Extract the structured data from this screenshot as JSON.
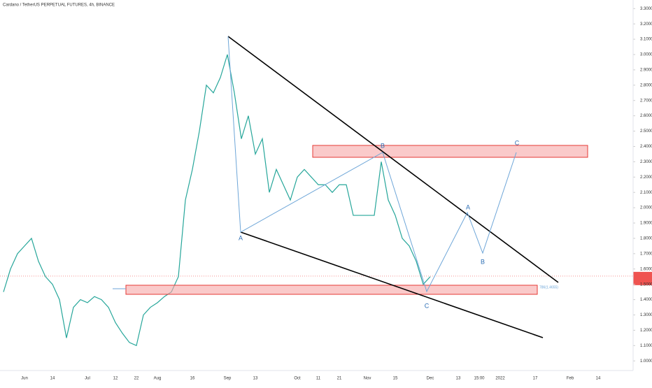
{
  "chart_data": {
    "type": "line",
    "title": "Cardano / TetherUS PERPETUAL FUTURES, 4h, BINANCE",
    "categories": [
      null,
      null,
      null,
      "Jun",
      null,
      null,
      null,
      "14",
      null,
      null,
      null,
      null,
      "Jul",
      null,
      null,
      null,
      "12",
      null,
      null,
      "22",
      null,
      null,
      "Aug",
      null,
      null,
      null,
      null,
      "16",
      null,
      null,
      null,
      null,
      "Sep",
      null,
      null,
      null,
      "13",
      null,
      null,
      null,
      null,
      null,
      "Oct",
      null,
      null,
      "11",
      null,
      null,
      "21",
      null,
      null,
      null,
      "Nov",
      null,
      null,
      null,
      "15",
      null,
      null,
      null,
      null,
      "Dec",
      null,
      null,
      null,
      "13",
      null,
      null,
      "15:00",
      null,
      null,
      "2022",
      null,
      null,
      null,
      null,
      "17",
      null,
      null,
      null,
      null,
      "Feb",
      null,
      null,
      null,
      "14",
      null,
      null,
      null,
      null,
      null
    ],
    "series": [
      {
        "color": "#26a69a",
        "values": [
          1.45,
          1.6,
          1.7,
          1.75,
          1.8,
          1.65,
          1.55,
          1.5,
          1.4,
          1.15,
          1.35,
          1.4,
          1.38,
          1.42,
          1.4,
          1.35,
          1.25,
          1.18,
          1.12,
          1.1,
          1.3,
          1.35,
          1.38,
          1.42,
          1.45,
          1.55,
          2.05,
          2.25,
          2.5,
          2.8,
          2.75,
          2.85,
          3.0,
          2.75,
          2.45,
          2.6,
          2.35,
          2.45,
          2.1,
          2.25,
          2.15,
          2.05,
          2.2,
          2.25,
          2.2,
          2.15,
          2.15,
          2.1,
          2.15,
          2.15,
          1.95,
          1.95,
          1.95,
          1.95,
          2.3,
          2.05,
          1.95,
          1.8,
          1.75,
          1.65,
          1.5,
          1.55,
          null,
          null,
          null,
          null,
          null,
          null,
          null,
          null,
          null,
          null,
          null,
          null,
          null,
          null,
          null,
          null,
          null,
          null,
          null,
          null,
          null,
          null,
          null,
          null,
          null,
          null,
          null,
          null,
          null
        ]
      }
    ],
    "ylim": [
      0.96,
      3.34
    ],
    "yticks": [
      {
        "value": 1.0,
        "label": "1.0000"
      },
      {
        "value": 1.1,
        "label": "1.1000"
      },
      {
        "value": 1.2,
        "label": "1.2000"
      },
      {
        "value": 1.3,
        "label": "1.3000"
      },
      {
        "value": 1.4,
        "label": "1.4000"
      },
      {
        "value": 1.5,
        "label": "1.5000"
      },
      {
        "value": 1.6,
        "label": "1.6000"
      },
      {
        "value": 1.7,
        "label": "1.7000"
      },
      {
        "value": 1.8,
        "label": "1.8000"
      },
      {
        "value": 1.9,
        "label": "1.9000"
      },
      {
        "value": 2.0,
        "label": "2.0000"
      },
      {
        "value": 2.1,
        "label": "2.1000"
      },
      {
        "value": 2.2,
        "label": "2.2000"
      },
      {
        "value": 2.3,
        "label": "2.3000"
      },
      {
        "value": 2.4,
        "label": "2.4000"
      },
      {
        "value": 2.5,
        "label": "2.5000"
      },
      {
        "value": 2.6,
        "label": "2.6000"
      },
      {
        "value": 2.7,
        "label": "2.7000"
      },
      {
        "value": 2.8,
        "label": "2.8000"
      },
      {
        "value": 2.9,
        "label": "2.9000"
      },
      {
        "value": 3.0,
        "label": "3.0000"
      },
      {
        "value": 3.1,
        "label": "3.1000"
      },
      {
        "value": 3.2,
        "label": "3.2000"
      },
      {
        "value": 3.3,
        "label": "3.3000"
      }
    ],
    "last_price": {
      "value": 1.5538,
      "label": "1.5538",
      "countdown": "36:05"
    },
    "annotations": [
      "A",
      "B",
      "C",
      "A",
      "B",
      "C",
      "786(1.4655)"
    ]
  }
}
